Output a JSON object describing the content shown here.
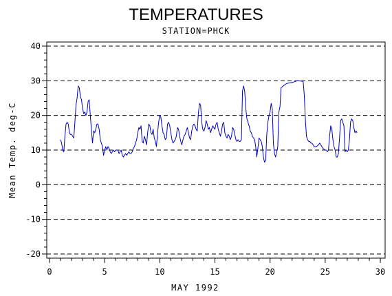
{
  "chart_data": {
    "type": "line",
    "title": "TEMPERATURES",
    "subtitle": "STATION=PHCK",
    "xlabel": "MAY 1992",
    "ylabel": "Mean Temp. deg-C",
    "xlim": [
      0,
      30
    ],
    "ylim": [
      -20,
      40
    ],
    "xticks": [
      0,
      5,
      10,
      15,
      20,
      25,
      30
    ],
    "yticks": [
      -20,
      -10,
      0,
      10,
      20,
      30,
      40
    ],
    "grid": "dashed horizontal lines at major y ticks",
    "line_color": "#0000cc",
    "series": [
      {
        "values": [
          [
            1.0,
            13.0
          ],
          [
            1.1,
            12.0
          ],
          [
            1.2,
            10.0
          ],
          [
            1.3,
            9.5
          ],
          [
            1.4,
            14.0
          ],
          [
            1.5,
            17.5
          ],
          [
            1.6,
            18.0
          ],
          [
            1.7,
            17.5
          ],
          [
            1.8,
            15.0
          ],
          [
            1.9,
            14.5
          ],
          [
            2.0,
            14.5
          ],
          [
            2.1,
            14.0
          ],
          [
            2.2,
            13.5
          ],
          [
            2.3,
            18.0
          ],
          [
            2.4,
            23.0
          ],
          [
            2.5,
            25.0
          ],
          [
            2.6,
            28.5
          ],
          [
            2.7,
            28.0
          ],
          [
            2.8,
            25.5
          ],
          [
            2.9,
            24.5
          ],
          [
            3.0,
            22.0
          ],
          [
            3.1,
            20.5
          ],
          [
            3.2,
            21.0
          ],
          [
            3.3,
            20.0
          ],
          [
            3.4,
            21.0
          ],
          [
            3.5,
            24.0
          ],
          [
            3.6,
            24.5
          ],
          [
            3.7,
            20.0
          ],
          [
            3.8,
            16.0
          ],
          [
            3.9,
            12.0
          ],
          [
            4.0,
            15.5
          ],
          [
            4.1,
            15.0
          ],
          [
            4.2,
            16.0
          ],
          [
            4.3,
            17.5
          ],
          [
            4.4,
            17.5
          ],
          [
            4.5,
            16.0
          ],
          [
            4.6,
            13.0
          ],
          [
            4.7,
            12.0
          ],
          [
            4.8,
            11.0
          ],
          [
            4.9,
            8.5
          ],
          [
            5.0,
            10.0
          ],
          [
            5.1,
            11.0
          ],
          [
            5.2,
            10.0
          ],
          [
            5.3,
            11.0
          ],
          [
            5.4,
            10.5
          ],
          [
            5.5,
            9.5
          ],
          [
            5.6,
            9.0
          ],
          [
            5.7,
            9.5
          ],
          [
            5.8,
            10.0
          ],
          [
            5.9,
            9.5
          ],
          [
            6.0,
            10.0
          ],
          [
            6.2,
            10.0
          ],
          [
            6.3,
            9.0
          ],
          [
            6.4,
            9.5
          ],
          [
            6.5,
            10.0
          ],
          [
            6.6,
            8.5
          ],
          [
            6.7,
            8.0
          ],
          [
            6.8,
            8.5
          ],
          [
            6.9,
            9.0
          ],
          [
            7.0,
            8.5
          ],
          [
            7.1,
            9.0
          ],
          [
            7.2,
            9.5
          ],
          [
            7.3,
            9.0
          ],
          [
            7.4,
            9.0
          ],
          [
            7.5,
            9.5
          ],
          [
            7.6,
            10.5
          ],
          [
            7.7,
            11.0
          ],
          [
            7.8,
            12.0
          ],
          [
            7.9,
            13.0
          ],
          [
            8.0,
            15.0
          ],
          [
            8.1,
            16.5
          ],
          [
            8.2,
            16.0
          ],
          [
            8.3,
            17.0
          ],
          [
            8.4,
            12.5
          ],
          [
            8.5,
            12.0
          ],
          [
            8.6,
            14.0
          ],
          [
            8.7,
            13.0
          ],
          [
            8.8,
            11.5
          ],
          [
            8.9,
            15.0
          ],
          [
            9.0,
            17.5
          ],
          [
            9.1,
            17.0
          ],
          [
            9.2,
            15.0
          ],
          [
            9.3,
            14.5
          ],
          [
            9.4,
            16.0
          ],
          [
            9.5,
            13.5
          ],
          [
            9.6,
            12.5
          ],
          [
            9.7,
            11.0
          ],
          [
            9.8,
            15.0
          ],
          [
            9.9,
            18.0
          ],
          [
            10.0,
            20.0
          ],
          [
            10.1,
            19.5
          ],
          [
            10.2,
            17.0
          ],
          [
            10.3,
            15.0
          ],
          [
            10.4,
            14.5
          ],
          [
            10.5,
            13.0
          ],
          [
            10.6,
            13.5
          ],
          [
            10.7,
            17.5
          ],
          [
            10.8,
            18.0
          ],
          [
            10.9,
            17.0
          ],
          [
            11.0,
            15.0
          ],
          [
            11.1,
            13.0
          ],
          [
            11.2,
            12.0
          ],
          [
            11.3,
            12.5
          ],
          [
            11.4,
            13.0
          ],
          [
            11.5,
            14.0
          ],
          [
            11.6,
            16.5
          ],
          [
            11.7,
            16.0
          ],
          [
            11.8,
            14.0
          ],
          [
            11.9,
            12.5
          ],
          [
            12.0,
            11.5
          ],
          [
            12.1,
            13.0
          ],
          [
            12.2,
            14.0
          ],
          [
            12.3,
            14.5
          ],
          [
            12.4,
            15.5
          ],
          [
            12.5,
            16.5
          ],
          [
            12.6,
            15.0
          ],
          [
            12.7,
            13.5
          ],
          [
            12.8,
            13.0
          ],
          [
            12.9,
            15.5
          ],
          [
            13.0,
            17.0
          ],
          [
            13.1,
            17.5
          ],
          [
            13.2,
            17.0
          ],
          [
            13.3,
            16.0
          ],
          [
            13.4,
            15.5
          ],
          [
            13.5,
            20.5
          ],
          [
            13.6,
            23.5
          ],
          [
            13.7,
            23.0
          ],
          [
            13.8,
            18.0
          ],
          [
            13.9,
            16.0
          ],
          [
            14.0,
            15.5
          ],
          [
            14.1,
            16.5
          ],
          [
            14.2,
            18.5
          ],
          [
            14.3,
            17.5
          ],
          [
            14.4,
            16.0
          ],
          [
            14.5,
            16.5
          ],
          [
            14.6,
            15.0
          ],
          [
            14.7,
            16.0
          ],
          [
            14.8,
            17.0
          ],
          [
            14.9,
            16.5
          ],
          [
            15.0,
            16.0
          ],
          [
            15.1,
            17.5
          ],
          [
            15.2,
            18.0
          ],
          [
            15.3,
            16.0
          ],
          [
            15.4,
            15.0
          ],
          [
            15.5,
            14.0
          ],
          [
            15.6,
            15.5
          ],
          [
            15.7,
            17.5
          ],
          [
            15.8,
            18.0
          ],
          [
            15.9,
            15.0
          ],
          [
            16.0,
            14.0
          ],
          [
            16.1,
            13.5
          ],
          [
            16.2,
            14.5
          ],
          [
            16.3,
            14.0
          ],
          [
            16.4,
            13.0
          ],
          [
            16.5,
            14.0
          ],
          [
            16.6,
            16.5
          ],
          [
            16.7,
            16.0
          ],
          [
            16.8,
            14.5
          ],
          [
            16.9,
            13.0
          ],
          [
            17.0,
            12.5
          ],
          [
            17.1,
            13.0
          ],
          [
            17.2,
            12.5
          ],
          [
            17.3,
            12.5
          ],
          [
            17.4,
            13.0
          ],
          [
            17.5,
            27.0
          ],
          [
            17.6,
            28.5
          ],
          [
            17.7,
            27.0
          ],
          [
            17.8,
            22.0
          ],
          [
            17.9,
            19.0
          ],
          [
            18.0,
            18.0
          ],
          [
            18.1,
            17.0
          ],
          [
            18.2,
            15.5
          ],
          [
            18.3,
            15.0
          ],
          [
            18.4,
            14.0
          ],
          [
            18.5,
            13.5
          ],
          [
            18.6,
            13.0
          ],
          [
            18.7,
            11.0
          ],
          [
            18.8,
            8.0
          ],
          [
            18.9,
            10.5
          ],
          [
            19.0,
            13.5
          ],
          [
            19.1,
            13.0
          ],
          [
            19.2,
            12.5
          ],
          [
            19.3,
            11.0
          ],
          [
            19.4,
            8.0
          ],
          [
            19.5,
            6.5
          ],
          [
            19.6,
            7.0
          ],
          [
            19.7,
            14.5
          ],
          [
            19.8,
            18.0
          ],
          [
            19.9,
            20.0
          ],
          [
            20.0,
            21.0
          ],
          [
            20.1,
            23.5
          ],
          [
            20.2,
            22.0
          ],
          [
            20.3,
            12.0
          ],
          [
            20.4,
            9.0
          ],
          [
            20.5,
            8.0
          ],
          [
            20.6,
            9.5
          ],
          [
            20.7,
            11.0
          ],
          [
            20.8,
            21.0
          ],
          [
            20.9,
            22.5
          ],
          [
            21.0,
            28.0
          ],
          [
            21.2,
            28.5
          ],
          [
            21.4,
            29.0
          ],
          [
            21.6,
            29.3
          ],
          [
            22.0,
            29.5
          ],
          [
            22.5,
            30.0
          ],
          [
            23.0,
            29.8
          ],
          [
            23.1,
            26.0
          ],
          [
            23.2,
            19.0
          ],
          [
            23.3,
            14.0
          ],
          [
            23.4,
            13.0
          ],
          [
            23.5,
            12.5
          ],
          [
            23.6,
            12.5
          ],
          [
            23.7,
            12.0
          ],
          [
            23.8,
            12.0
          ],
          [
            23.9,
            11.5
          ],
          [
            24.0,
            11.0
          ],
          [
            24.2,
            11.0
          ],
          [
            24.4,
            11.5
          ],
          [
            24.5,
            12.0
          ],
          [
            24.6,
            11.5
          ],
          [
            24.7,
            11.0
          ],
          [
            24.8,
            10.5
          ],
          [
            25.0,
            10.0
          ],
          [
            25.1,
            10.0
          ],
          [
            25.2,
            9.5
          ],
          [
            25.3,
            10.0
          ],
          [
            25.4,
            14.0
          ],
          [
            25.5,
            17.0
          ],
          [
            25.6,
            16.0
          ],
          [
            25.7,
            13.0
          ],
          [
            25.8,
            11.0
          ],
          [
            25.9,
            10.0
          ],
          [
            26.0,
            8.0
          ],
          [
            26.1,
            8.0
          ],
          [
            26.2,
            9.0
          ],
          [
            26.3,
            13.5
          ],
          [
            26.4,
            18.5
          ],
          [
            26.5,
            19.0
          ],
          [
            26.6,
            18.0
          ],
          [
            26.7,
            17.0
          ],
          [
            26.8,
            9.5
          ],
          [
            26.9,
            10.0
          ],
          [
            27.0,
            9.5
          ],
          [
            27.1,
            10.0
          ],
          [
            27.2,
            13.0
          ],
          [
            27.3,
            18.0
          ],
          [
            27.4,
            19.0
          ],
          [
            27.5,
            18.5
          ],
          [
            27.6,
            16.5
          ],
          [
            27.7,
            15.0
          ],
          [
            27.8,
            15.5
          ],
          [
            27.9,
            15.0
          ]
        ]
      }
    ]
  }
}
